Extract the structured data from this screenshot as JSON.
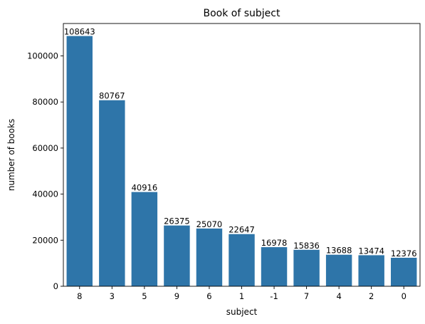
{
  "chart_data": {
    "type": "bar",
    "title": "Book of subject",
    "xlabel": "subject",
    "ylabel": "number of books",
    "categories": [
      "8",
      "3",
      "5",
      "9",
      "6",
      "1",
      "-1",
      "7",
      "4",
      "2",
      "0"
    ],
    "values": [
      108643,
      80767,
      40916,
      26375,
      25070,
      22647,
      16978,
      15836,
      13688,
      13474,
      12376
    ],
    "data_labels": [
      "108643",
      "80767",
      "40916",
      "26375",
      "25070",
      "22647",
      "16978",
      "15836",
      "13688",
      "13474",
      "12376"
    ],
    "ylim": [
      0,
      114075
    ],
    "yticks": [
      0,
      20000,
      40000,
      60000,
      80000,
      100000
    ],
    "ytick_labels": [
      "0",
      "20000",
      "40000",
      "60000",
      "80000",
      "100000"
    ],
    "grid": false,
    "bar_color": "#2e75a9"
  }
}
